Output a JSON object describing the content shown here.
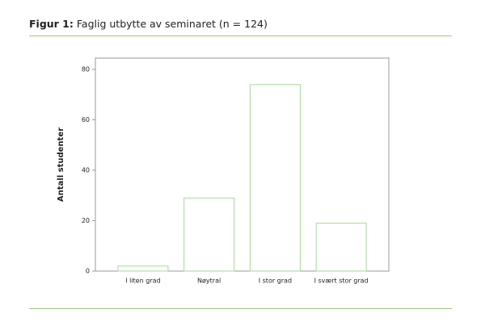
{
  "chart_data": {
    "type": "bar",
    "figure_label": "Figur 1:",
    "title": "Faglig utbytte av seminaret (n = 124)",
    "y_label": "Antall studenter",
    "categories": [
      "I liten grad",
      "Nøytral",
      "I stor grad",
      "I svært stor grad"
    ],
    "values": [
      2,
      29,
      74,
      19
    ],
    "color": "#a6d89a",
    "ylim": [
      0,
      84.5
    ],
    "yticks": [
      0,
      20,
      40,
      60,
      80
    ]
  }
}
